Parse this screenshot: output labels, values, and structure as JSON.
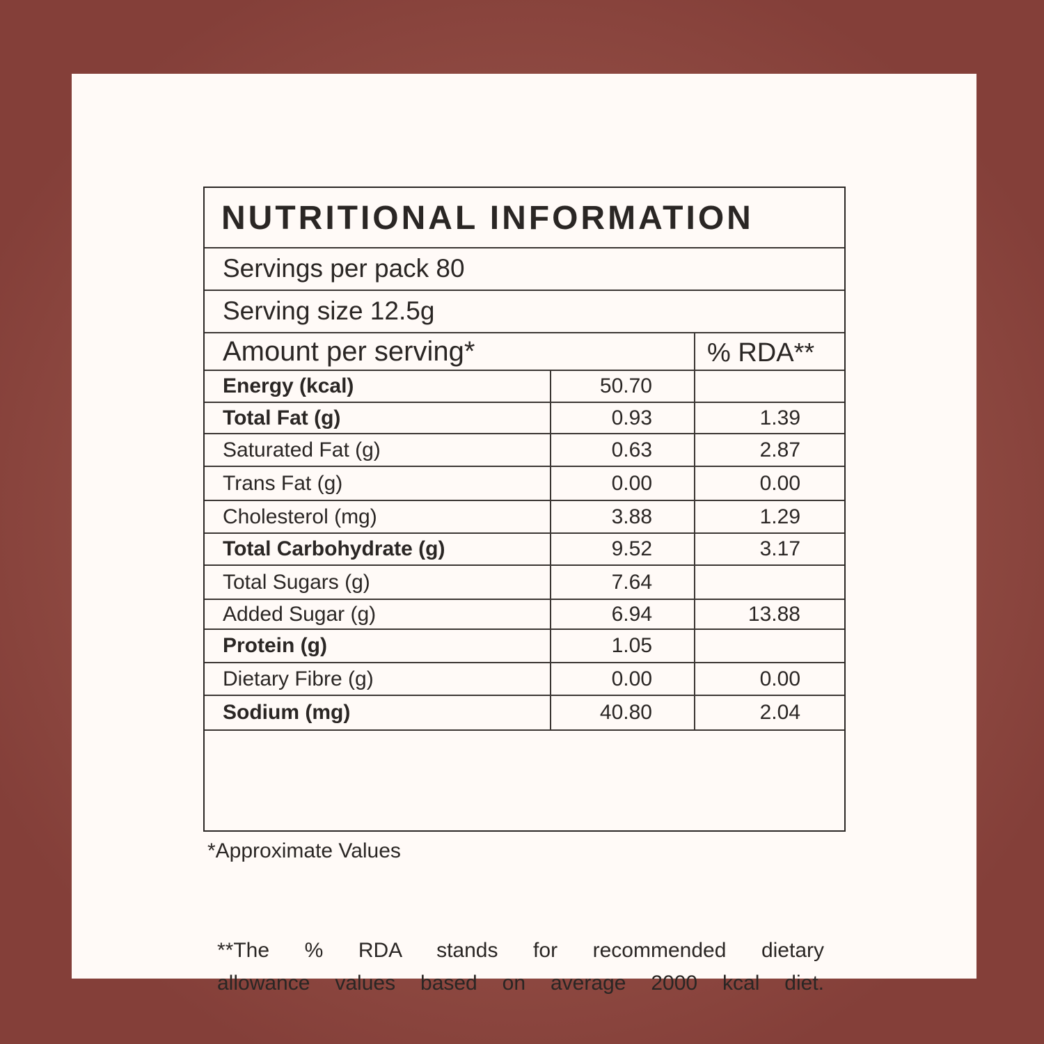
{
  "colors": {
    "frame": "#843f39",
    "panel": "#fffaf7",
    "text": "#2a2624"
  },
  "title": "NUTRITIONAL INFORMATION",
  "servings_per_pack": "Servings per pack 80",
  "serving_size": "Serving size 12.5g",
  "header": {
    "amount": "Amount per serving*",
    "rda": "% RDA**"
  },
  "rows": [
    {
      "label": "Energy (kcal)",
      "amount": "50.70",
      "rda": "",
      "bold": true
    },
    {
      "label": "Total Fat (g)",
      "amount": "0.93",
      "rda": "1.39",
      "bold": true
    },
    {
      "label": "Saturated Fat (g)",
      "amount": "0.63",
      "rda": "2.87",
      "bold": false
    },
    {
      "label": "Trans Fat (g)",
      "amount": "0.00",
      "rda": "0.00",
      "bold": false
    },
    {
      "label": "Cholesterol (mg)",
      "amount": "3.88",
      "rda": "1.29",
      "bold": false
    },
    {
      "label": "Total Carbohydrate (g)",
      "amount": "9.52",
      "rda": "3.17",
      "bold": true
    },
    {
      "label": "Total Sugars (g)",
      "amount": "7.64",
      "rda": "",
      "bold": false
    },
    {
      "label": "Added  Sugar (g)",
      "amount": "6.94",
      "rda": "13.88",
      "bold": false
    },
    {
      "label": "Protein (g)",
      "amount": "1.05",
      "rda": "",
      "bold": true
    },
    {
      "label": "Dietary Fibre (g)",
      "amount": "0.00",
      "rda": "0.00",
      "bold": false
    },
    {
      "label": "Sodium (mg)",
      "amount": "40.80",
      "rda": "2.04",
      "bold": true
    }
  ],
  "footnote_line1": "**The % RDA stands for recommended dietary",
  "footnote_line2": "allowance values based on average 2000 kcal diet.",
  "approximate": "*Approximate Values"
}
